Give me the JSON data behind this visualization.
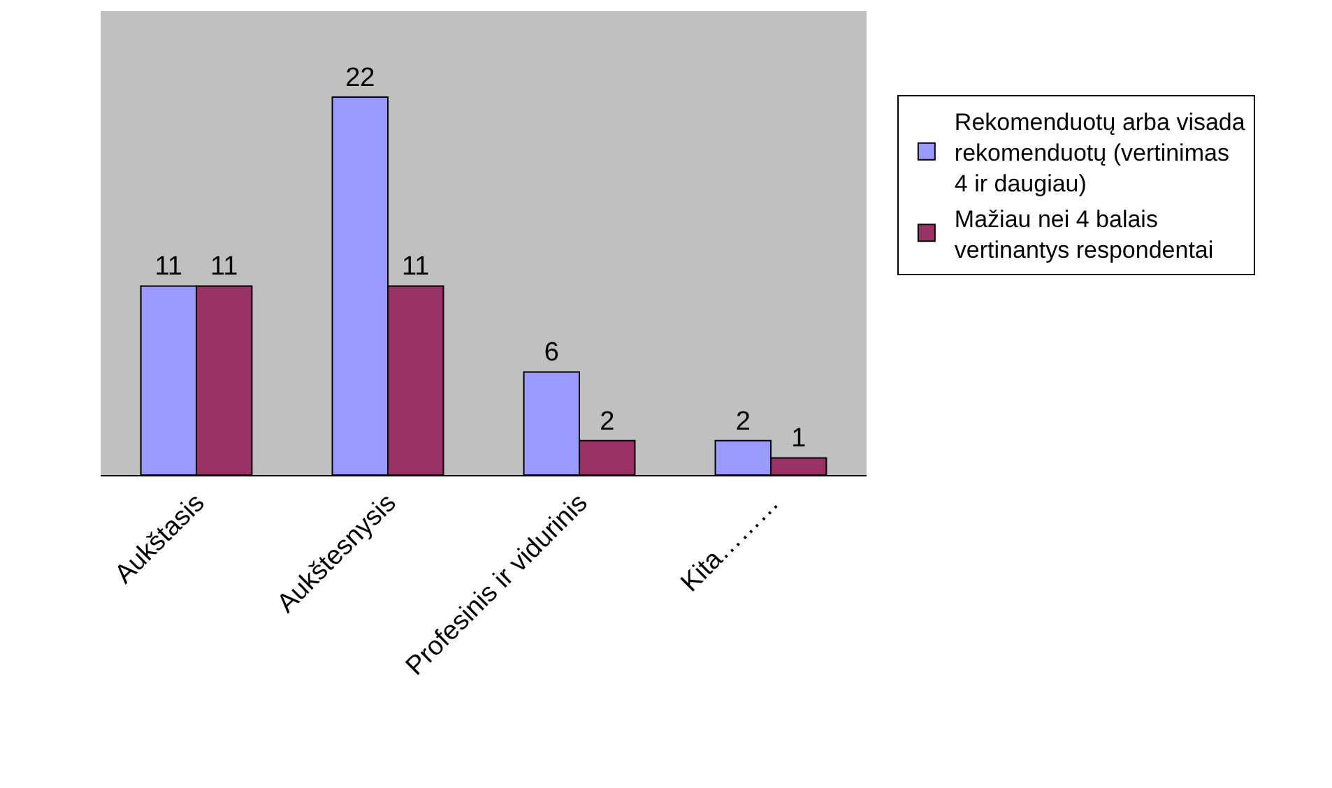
{
  "chart_data": {
    "type": "bar",
    "categories": [
      "Aukštasis",
      "Aukštesnysis",
      "Profesinis ir vidurinis",
      "Kita………"
    ],
    "series": [
      {
        "name": "Rekomenduotų arba visada rekomenduotų (vertinimas 4 ir daugiau)",
        "color": "#9999ff",
        "values": [
          11,
          22,
          6,
          2
        ]
      },
      {
        "name": "Mažiau nei 4 balais vertinantys respondentai",
        "color": "#993366",
        "values": [
          11,
          11,
          2,
          1
        ]
      }
    ],
    "ylim": [
      0,
      27
    ],
    "data_labels": true,
    "grid": false,
    "legend": "right",
    "tick_labels": "x"
  }
}
